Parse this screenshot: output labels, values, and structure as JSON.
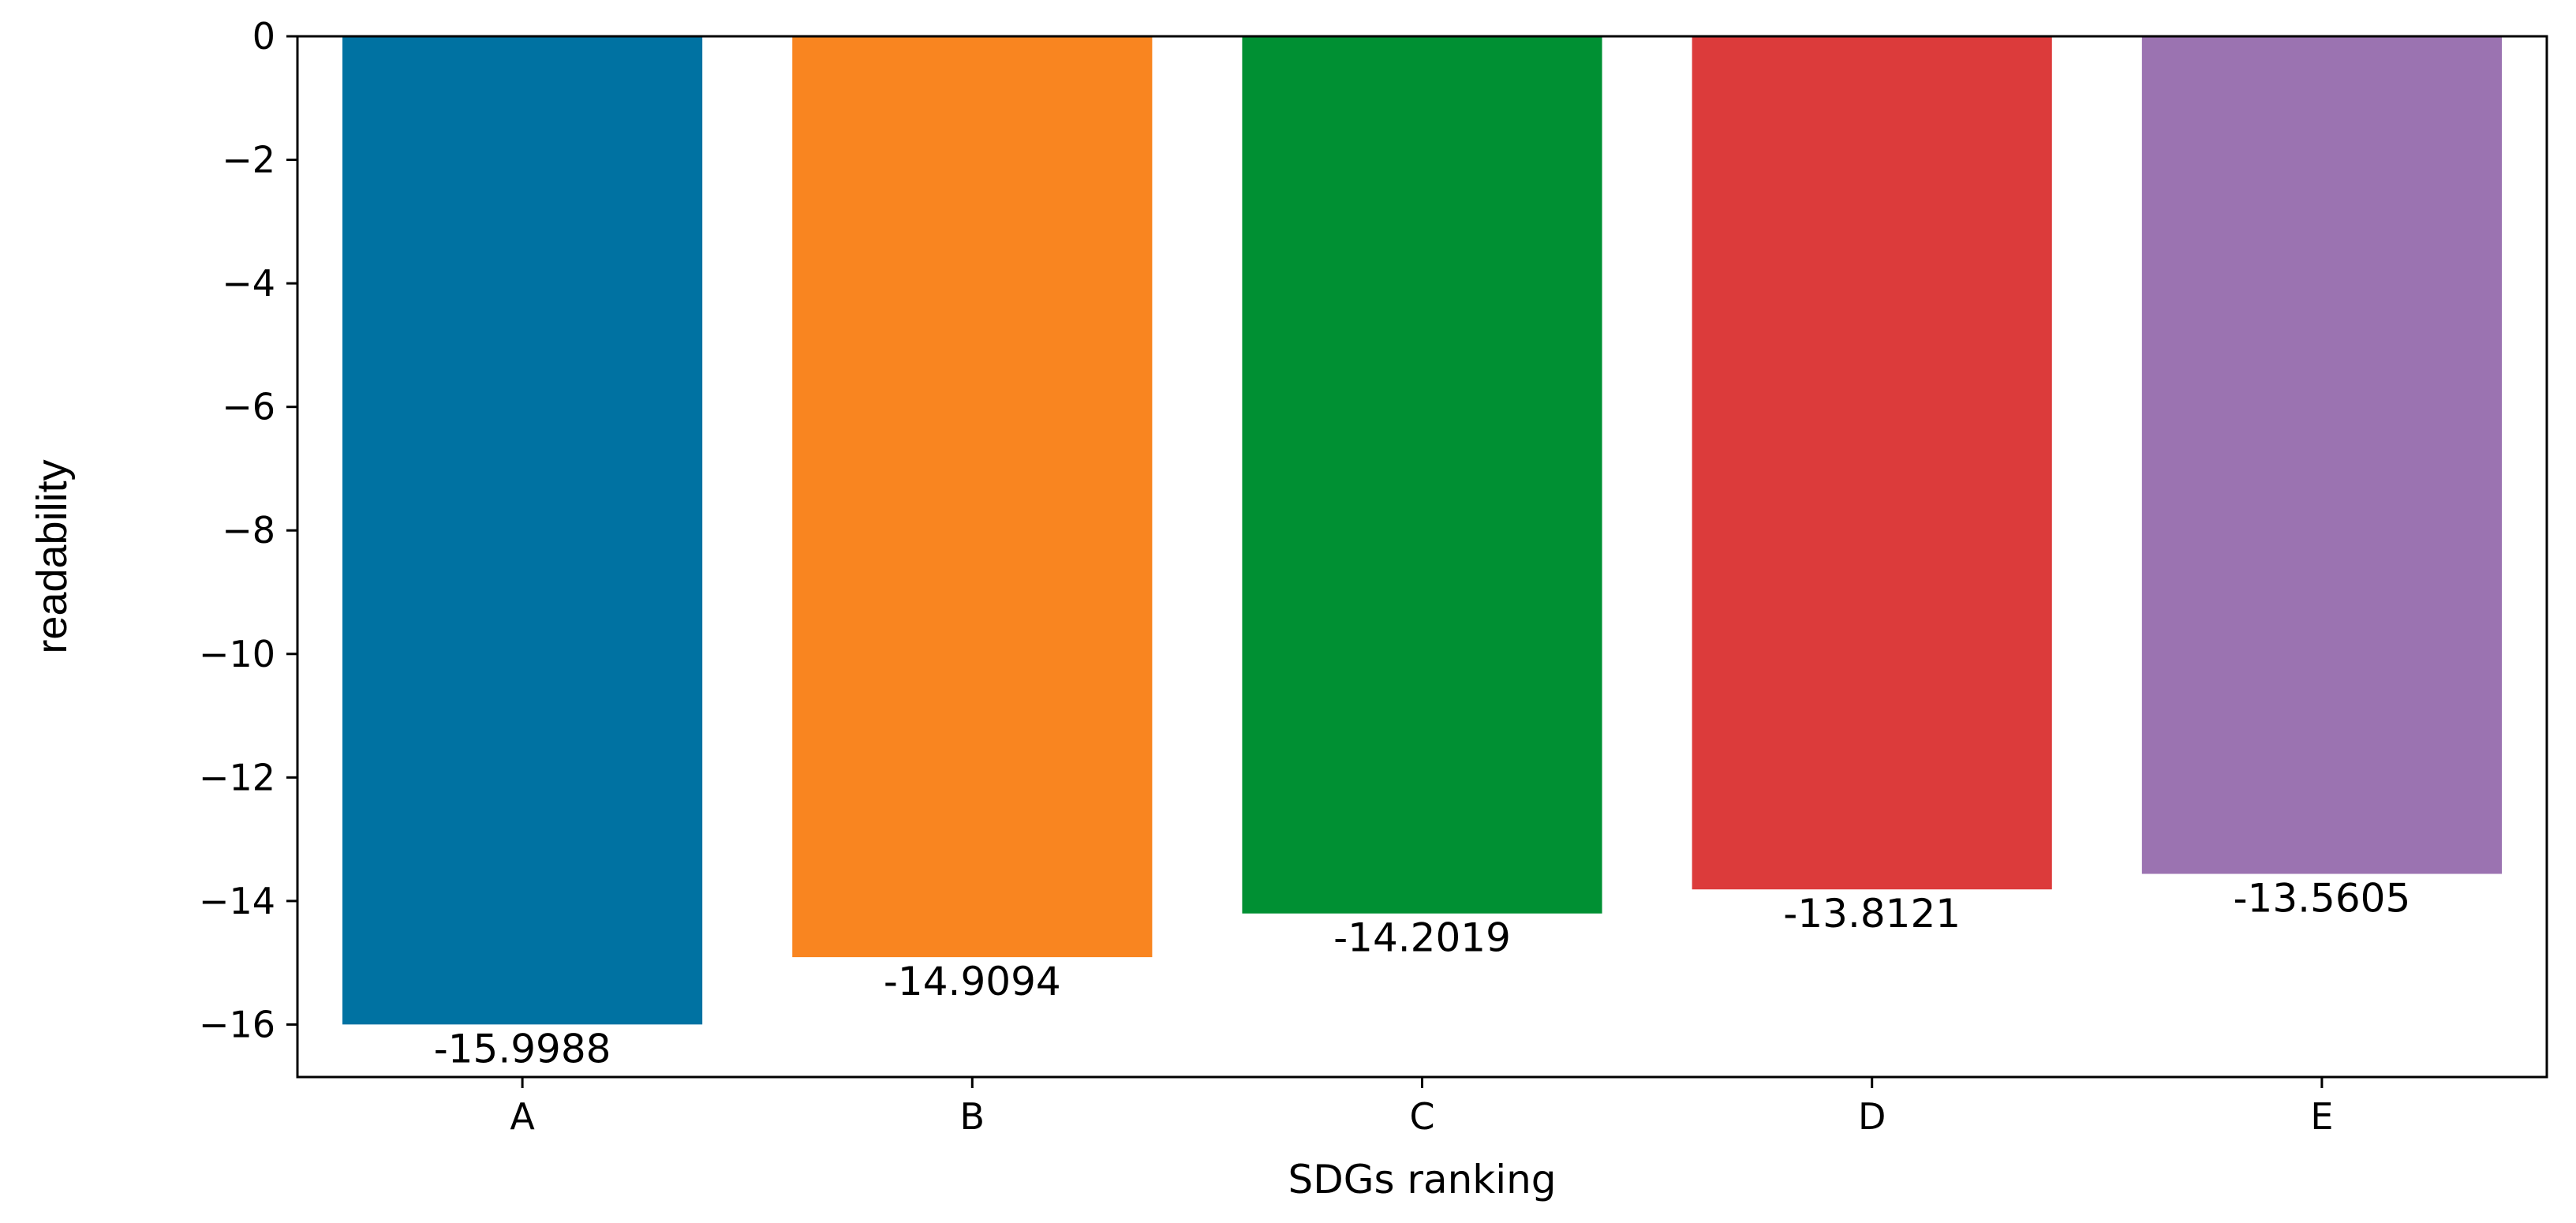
{
  "chart_data": {
    "type": "bar",
    "title": "",
    "xlabel": "SDGs ranking",
    "ylabel": "readability",
    "categories": [
      "A",
      "B",
      "C",
      "D",
      "E"
    ],
    "values": [
      -15.9988,
      -14.9094,
      -14.2019,
      -13.8121,
      -13.5605
    ],
    "value_labels": [
      "-15.9988",
      "-14.9094",
      "-14.2019",
      "-13.8121",
      "-13.5605"
    ],
    "colors": [
      "#0072A2",
      "#F98520",
      "#009033",
      "#DC3B3B",
      "#9B73B1"
    ],
    "yticks": [
      0,
      -2,
      -4,
      -6,
      -8,
      -10,
      -12,
      -14,
      -16
    ],
    "ytick_labels": [
      "0",
      "−2",
      "−4",
      "−6",
      "−8",
      "−10",
      "−12",
      "−14",
      "−16"
    ],
    "ylim": [
      -16.85,
      0
    ],
    "grid": false,
    "legend": false
  }
}
